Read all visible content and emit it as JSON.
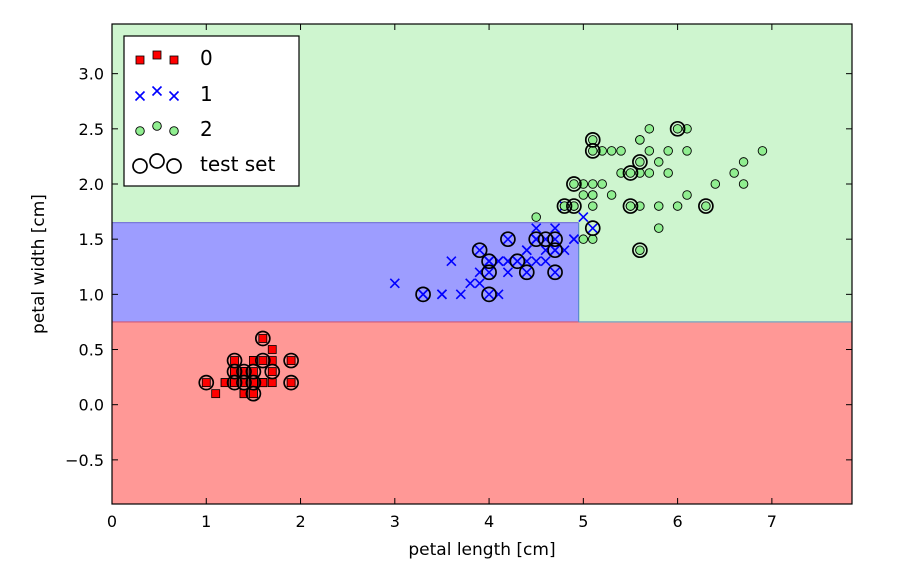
{
  "chart_data": {
    "type": "scatter",
    "xlabel": "petal length [cm]",
    "ylabel": "petal width [cm]",
    "xlim": [
      0,
      7.85
    ],
    "ylim": [
      -0.9,
      3.45
    ],
    "x_ticks": [
      0,
      1,
      2,
      3,
      4,
      5,
      6,
      7
    ],
    "x_tick_labels": [
      "0",
      "1",
      "2",
      "3",
      "4",
      "5",
      "6",
      "7"
    ],
    "y_ticks": [
      -0.5,
      0.0,
      0.5,
      1.0,
      1.5,
      2.0,
      2.5,
      3.0
    ],
    "y_tick_labels": [
      "−0.5",
      "0.0",
      "0.5",
      "1.0",
      "1.5",
      "2.0",
      "2.5",
      "3.0"
    ],
    "grid": false,
    "legend_position": "top-left",
    "decision_regions": [
      {
        "class": "0",
        "color": "#ff9896",
        "description": "petal width < 0.75"
      },
      {
        "class": "1",
        "color": "#9d9dff",
        "description": "0.75 <= petal width < 1.65 and petal length < 4.95"
      },
      {
        "class": "2",
        "color": "#cef5cf",
        "description": "otherwise"
      }
    ],
    "decision_boundaries": {
      "width_low": 0.75,
      "width_high": 1.65,
      "length_split": 4.95
    },
    "series": [
      {
        "name": "0",
        "marker": "square",
        "color": "#ff0000",
        "points": [
          [
            1.4,
            0.2
          ],
          [
            1.3,
            0.2
          ],
          [
            1.5,
            0.2
          ],
          [
            1.4,
            0.2
          ],
          [
            1.7,
            0.4
          ],
          [
            1.4,
            0.3
          ],
          [
            1.5,
            0.2
          ],
          [
            1.4,
            0.2
          ],
          [
            1.5,
            0.1
          ],
          [
            1.5,
            0.2
          ],
          [
            1.6,
            0.2
          ],
          [
            1.4,
            0.1
          ],
          [
            1.1,
            0.1
          ],
          [
            1.2,
            0.2
          ],
          [
            1.5,
            0.4
          ],
          [
            1.3,
            0.4
          ],
          [
            1.4,
            0.3
          ],
          [
            1.7,
            0.3
          ],
          [
            1.5,
            0.3
          ],
          [
            1.7,
            0.2
          ],
          [
            1.5,
            0.4
          ],
          [
            1.0,
            0.2
          ],
          [
            1.7,
            0.5
          ],
          [
            1.9,
            0.2
          ],
          [
            1.6,
            0.2
          ],
          [
            1.6,
            0.4
          ],
          [
            1.5,
            0.2
          ],
          [
            1.4,
            0.2
          ],
          [
            1.6,
            0.2
          ],
          [
            1.6,
            0.2
          ],
          [
            1.5,
            0.4
          ],
          [
            1.5,
            0.1
          ],
          [
            1.4,
            0.2
          ],
          [
            1.5,
            0.2
          ],
          [
            1.2,
            0.2
          ],
          [
            1.3,
            0.2
          ],
          [
            1.4,
            0.1
          ],
          [
            1.3,
            0.2
          ],
          [
            1.5,
            0.2
          ],
          [
            1.3,
            0.3
          ],
          [
            1.3,
            0.3
          ],
          [
            1.3,
            0.2
          ],
          [
            1.6,
            0.6
          ],
          [
            1.9,
            0.4
          ],
          [
            1.4,
            0.3
          ],
          [
            1.6,
            0.2
          ],
          [
            1.4,
            0.2
          ],
          [
            1.5,
            0.2
          ],
          [
            1.4,
            0.2
          ]
        ]
      },
      {
        "name": "1",
        "marker": "x",
        "color": "#0000ff",
        "points": [
          [
            4.7,
            1.4
          ],
          [
            4.5,
            1.5
          ],
          [
            4.9,
            1.5
          ],
          [
            4.0,
            1.3
          ],
          [
            4.6,
            1.5
          ],
          [
            4.5,
            1.3
          ],
          [
            4.7,
            1.6
          ],
          [
            3.3,
            1.0
          ],
          [
            4.6,
            1.3
          ],
          [
            3.9,
            1.4
          ],
          [
            3.5,
            1.0
          ],
          [
            4.2,
            1.5
          ],
          [
            4.0,
            1.0
          ],
          [
            4.7,
            1.4
          ],
          [
            3.6,
            1.3
          ],
          [
            4.4,
            1.4
          ],
          [
            4.5,
            1.5
          ],
          [
            4.1,
            1.0
          ],
          [
            4.5,
            1.5
          ],
          [
            3.9,
            1.1
          ],
          [
            4.8,
            1.8
          ],
          [
            4.0,
            1.3
          ],
          [
            4.9,
            1.5
          ],
          [
            4.7,
            1.2
          ],
          [
            4.3,
            1.3
          ],
          [
            4.4,
            1.4
          ],
          [
            4.8,
            1.4
          ],
          [
            5.0,
            1.7
          ],
          [
            4.5,
            1.5
          ],
          [
            3.5,
            1.0
          ],
          [
            3.8,
            1.1
          ],
          [
            3.7,
            1.0
          ],
          [
            3.9,
            1.2
          ],
          [
            5.1,
            1.6
          ],
          [
            4.5,
            1.5
          ],
          [
            4.5,
            1.6
          ],
          [
            4.7,
            1.5
          ],
          [
            4.4,
            1.3
          ],
          [
            4.1,
            1.3
          ],
          [
            4.0,
            1.3
          ],
          [
            4.4,
            1.2
          ],
          [
            4.6,
            1.4
          ],
          [
            4.0,
            1.2
          ],
          [
            3.3,
            1.0
          ],
          [
            4.2,
            1.3
          ],
          [
            4.2,
            1.2
          ],
          [
            4.2,
            1.3
          ],
          [
            4.3,
            1.3
          ],
          [
            3.0,
            1.1
          ],
          [
            4.1,
            1.3
          ]
        ]
      },
      {
        "name": "2",
        "marker": "circle",
        "color": "#90ee90",
        "points": [
          [
            6.0,
            2.5
          ],
          [
            5.1,
            1.9
          ],
          [
            5.9,
            2.1
          ],
          [
            5.6,
            1.8
          ],
          [
            5.8,
            2.2
          ],
          [
            6.6,
            2.1
          ],
          [
            4.5,
            1.7
          ],
          [
            6.3,
            1.8
          ],
          [
            5.8,
            1.8
          ],
          [
            6.1,
            2.5
          ],
          [
            5.1,
            2.0
          ],
          [
            5.3,
            1.9
          ],
          [
            5.5,
            2.1
          ],
          [
            5.0,
            2.0
          ],
          [
            5.1,
            2.4
          ],
          [
            5.3,
            2.3
          ],
          [
            5.5,
            1.8
          ],
          [
            6.7,
            2.2
          ],
          [
            6.9,
            2.3
          ],
          [
            5.0,
            1.5
          ],
          [
            5.7,
            2.3
          ],
          [
            4.9,
            2.0
          ],
          [
            6.7,
            2.0
          ],
          [
            4.9,
            1.8
          ],
          [
            5.7,
            2.1
          ],
          [
            6.0,
            1.8
          ],
          [
            4.8,
            1.8
          ],
          [
            4.9,
            1.8
          ],
          [
            5.6,
            2.1
          ],
          [
            5.8,
            1.6
          ],
          [
            6.1,
            1.9
          ],
          [
            6.4,
            2.0
          ],
          [
            5.6,
            2.2
          ],
          [
            5.1,
            1.5
          ],
          [
            5.6,
            1.4
          ],
          [
            6.1,
            2.3
          ],
          [
            5.6,
            2.4
          ],
          [
            5.5,
            1.8
          ],
          [
            4.8,
            1.8
          ],
          [
            5.4,
            2.1
          ],
          [
            5.6,
            2.4
          ],
          [
            5.1,
            2.3
          ],
          [
            5.1,
            1.9
          ],
          [
            5.9,
            2.3
          ],
          [
            5.7,
            2.5
          ],
          [
            5.2,
            2.3
          ],
          [
            5.0,
            1.9
          ],
          [
            5.2,
            2.0
          ],
          [
            5.4,
            2.3
          ],
          [
            5.1,
            1.8
          ]
        ]
      },
      {
        "name": "test set",
        "marker": "open-circle",
        "color": "#000000",
        "points": [
          [
            1.0,
            0.2
          ],
          [
            1.3,
            0.2
          ],
          [
            1.3,
            0.4
          ],
          [
            1.3,
            0.3
          ],
          [
            1.4,
            0.2
          ],
          [
            1.4,
            0.3
          ],
          [
            1.5,
            0.1
          ],
          [
            1.5,
            0.2
          ],
          [
            1.5,
            0.3
          ],
          [
            1.6,
            0.4
          ],
          [
            1.6,
            0.6
          ],
          [
            1.7,
            0.3
          ],
          [
            1.9,
            0.2
          ],
          [
            1.9,
            0.4
          ],
          [
            3.3,
            1.0
          ],
          [
            3.9,
            1.4
          ],
          [
            4.0,
            1.0
          ],
          [
            4.0,
            1.2
          ],
          [
            4.0,
            1.3
          ],
          [
            4.2,
            1.5
          ],
          [
            4.3,
            1.3
          ],
          [
            4.4,
            1.2
          ],
          [
            4.5,
            1.5
          ],
          [
            4.6,
            1.5
          ],
          [
            4.7,
            1.2
          ],
          [
            4.7,
            1.4
          ],
          [
            4.7,
            1.5
          ],
          [
            4.8,
            1.8
          ],
          [
            4.9,
            1.8
          ],
          [
            4.9,
            2.0
          ],
          [
            5.1,
            1.6
          ],
          [
            5.1,
            2.3
          ],
          [
            5.1,
            2.4
          ],
          [
            5.5,
            1.8
          ],
          [
            5.5,
            2.1
          ],
          [
            5.6,
            1.4
          ],
          [
            5.6,
            2.2
          ],
          [
            6.0,
            2.5
          ],
          [
            6.3,
            1.8
          ]
        ]
      }
    ]
  }
}
